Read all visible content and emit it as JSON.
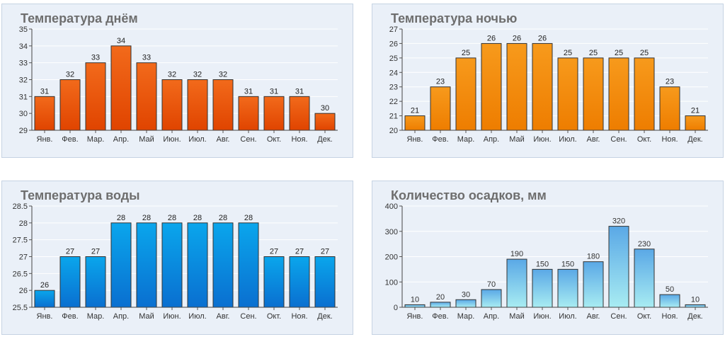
{
  "chart_data": [
    {
      "type": "bar",
      "title": "Температура днём",
      "categories": [
        "Янв.",
        "Фев.",
        "Мар.",
        "Апр.",
        "Май",
        "Июн.",
        "Июл.",
        "Авг.",
        "Сен.",
        "Окт.",
        "Ноя.",
        "Дек."
      ],
      "values": [
        31,
        32,
        33,
        34,
        33,
        32,
        32,
        32,
        31,
        31,
        31,
        30
      ],
      "labels": [
        "31",
        "32",
        "33",
        "34",
        "33",
        "32",
        "32",
        "32",
        "31",
        "31",
        "31",
        "30"
      ],
      "ylim": [
        29,
        35
      ],
      "yticks": [
        "29",
        "30",
        "31",
        "32",
        "33",
        "34",
        "35"
      ],
      "ytick_values": [
        29,
        30,
        31,
        32,
        33,
        34,
        35
      ],
      "colors": {
        "top": "#f26a1b",
        "bottom": "#e04400",
        "stroke": "#333333"
      },
      "label_color": "#222222"
    },
    {
      "type": "bar",
      "title": "Температура ночью",
      "categories": [
        "Янв.",
        "Фев.",
        "Мар.",
        "Апр.",
        "Май",
        "Июн.",
        "Июл.",
        "Авг.",
        "Сен.",
        "Окт.",
        "Ноя.",
        "Дек."
      ],
      "values": [
        21,
        23,
        25,
        26,
        26,
        26,
        25,
        25,
        25,
        25,
        23,
        21
      ],
      "labels": [
        "21",
        "23",
        "25",
        "26",
        "26",
        "26",
        "25",
        "25",
        "25",
        "25",
        "23",
        "21"
      ],
      "ylim": [
        20,
        27
      ],
      "yticks": [
        "20",
        "21",
        "22",
        "23",
        "24",
        "25",
        "26",
        "27"
      ],
      "ytick_values": [
        20,
        21,
        22,
        23,
        24,
        25,
        26,
        27
      ],
      "colors": {
        "top": "#f79a1c",
        "bottom": "#ee7d00",
        "stroke": "#333333"
      },
      "label_color": "#222222"
    },
    {
      "type": "bar",
      "title": "Температура воды",
      "categories": [
        "Янв.",
        "Фев.",
        "Мар.",
        "Апр.",
        "Май",
        "Июн.",
        "Июл.",
        "Авг.",
        "Сен.",
        "Окт.",
        "Ноя.",
        "Дек."
      ],
      "values": [
        26,
        27,
        27,
        28,
        28,
        28,
        28,
        28,
        28,
        27,
        27,
        27
      ],
      "labels": [
        "26",
        "27",
        "27",
        "28",
        "28",
        "28",
        "28",
        "28",
        "28",
        "27",
        "27",
        "27"
      ],
      "ylim": [
        25.5,
        28.5
      ],
      "yticks": [
        "25.5",
        "26",
        "26.5",
        "27",
        "27.5",
        "28",
        "28.5"
      ],
      "ytick_values": [
        25.5,
        26,
        26.5,
        27,
        27.5,
        28,
        28.5
      ],
      "colors": {
        "top": "#0aa6ec",
        "bottom": "#0a6fd0",
        "stroke": "#333333"
      },
      "label_color": "#222222"
    },
    {
      "type": "bar",
      "title": "Количество осадков, мм",
      "categories": [
        "Янв.",
        "Фев.",
        "Мар.",
        "Апр.",
        "Май",
        "Июн.",
        "Июл.",
        "Авг.",
        "Сен.",
        "Окт.",
        "Ноя.",
        "Дек."
      ],
      "values": [
        10,
        20,
        30,
        70,
        190,
        150,
        150,
        180,
        320,
        230,
        50,
        10
      ],
      "labels": [
        "10",
        "20",
        "30",
        "70",
        "190",
        "150",
        "150",
        "180",
        "320",
        "230",
        "50",
        "10"
      ],
      "ylim": [
        0,
        400
      ],
      "yticks": [
        "0",
        "100",
        "200",
        "300",
        "400"
      ],
      "ytick_values": [
        0,
        100,
        200,
        300,
        400
      ],
      "colors": {
        "top": "#5aa8e6",
        "bottom": "#a8ecf2",
        "stroke": "#333333"
      },
      "label_color": "#333333"
    }
  ]
}
